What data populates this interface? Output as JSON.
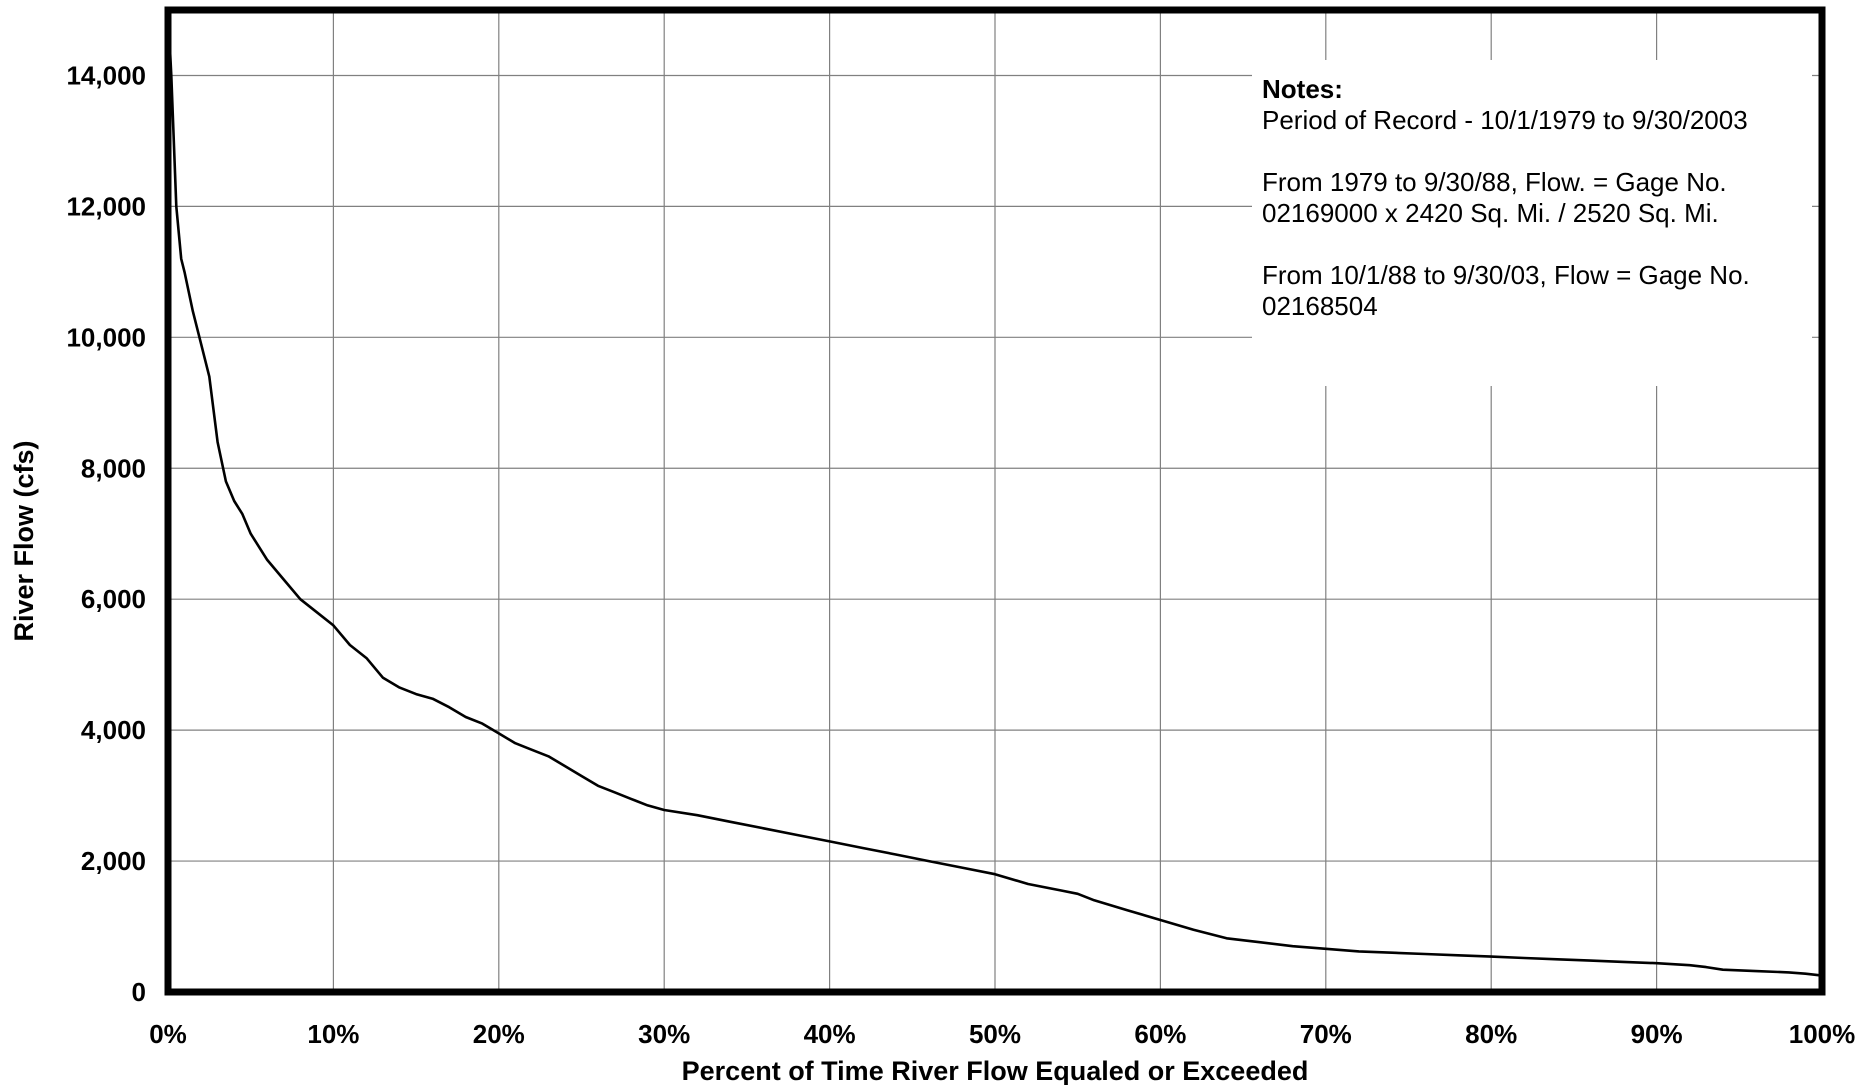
{
  "chart_data": {
    "type": "line",
    "title": "",
    "xlabel": "Percent of Time River Flow Equaled or Exceeded",
    "ylabel": "River Flow (cfs)",
    "xlim": [
      0,
      100
    ],
    "ylim": [
      0,
      15000
    ],
    "x_ticks": [
      "0%",
      "10%",
      "20%",
      "30%",
      "40%",
      "50%",
      "60%",
      "70%",
      "80%",
      "90%",
      "100%"
    ],
    "y_ticks": [
      "0",
      "2,000",
      "4,000",
      "6,000",
      "8,000",
      "10,000",
      "12,000",
      "14,000"
    ],
    "grid": true,
    "series": [
      {
        "x": [
          0,
          0.2,
          0.5,
          0.8,
          1,
          1.5,
          2,
          2.5,
          3,
          3.5,
          4,
          4.5,
          5,
          6,
          7,
          8,
          9,
          10,
          11,
          12,
          13,
          14,
          15,
          16,
          17,
          18,
          19,
          20,
          21,
          22,
          23,
          24,
          25,
          26,
          27,
          28,
          29,
          30,
          32,
          34,
          36,
          38,
          40,
          42,
          44,
          46,
          48,
          50,
          52,
          54,
          55,
          56,
          58,
          60,
          62,
          64,
          66,
          68,
          70,
          72,
          74,
          76,
          78,
          80,
          82,
          84,
          86,
          88,
          90,
          92,
          93,
          94,
          96,
          98,
          99,
          100
        ],
        "y": [
          15000,
          14000,
          12000,
          11200,
          11000,
          10400,
          9900,
          9400,
          8400,
          7800,
          7500,
          7300,
          7000,
          6600,
          6300,
          6000,
          5800,
          5600,
          5300,
          5100,
          4800,
          4650,
          4550,
          4480,
          4350,
          4200,
          4100,
          3950,
          3800,
          3700,
          3600,
          3450,
          3300,
          3150,
          3050,
          2950,
          2850,
          2780,
          2700,
          2600,
          2500,
          2400,
          2300,
          2200,
          2100,
          2000,
          1900,
          1800,
          1650,
          1550,
          1500,
          1400,
          1250,
          1100,
          950,
          820,
          760,
          700,
          660,
          620,
          600,
          580,
          560,
          540,
          520,
          500,
          480,
          460,
          440,
          410,
          380,
          340,
          320,
          300,
          280,
          250
        ]
      }
    ],
    "notes": {
      "title": "Notes:",
      "lines": [
        "Period of Record - 10/1/1979 to 9/30/2003",
        "",
        "From 1979 to 9/30/88, Flow. = Gage No.",
        "02169000 x 2420 Sq. Mi. / 2520 Sq. Mi.",
        "",
        "From 10/1/88 to 9/30/03, Flow = Gage No.",
        "02168504"
      ]
    }
  }
}
